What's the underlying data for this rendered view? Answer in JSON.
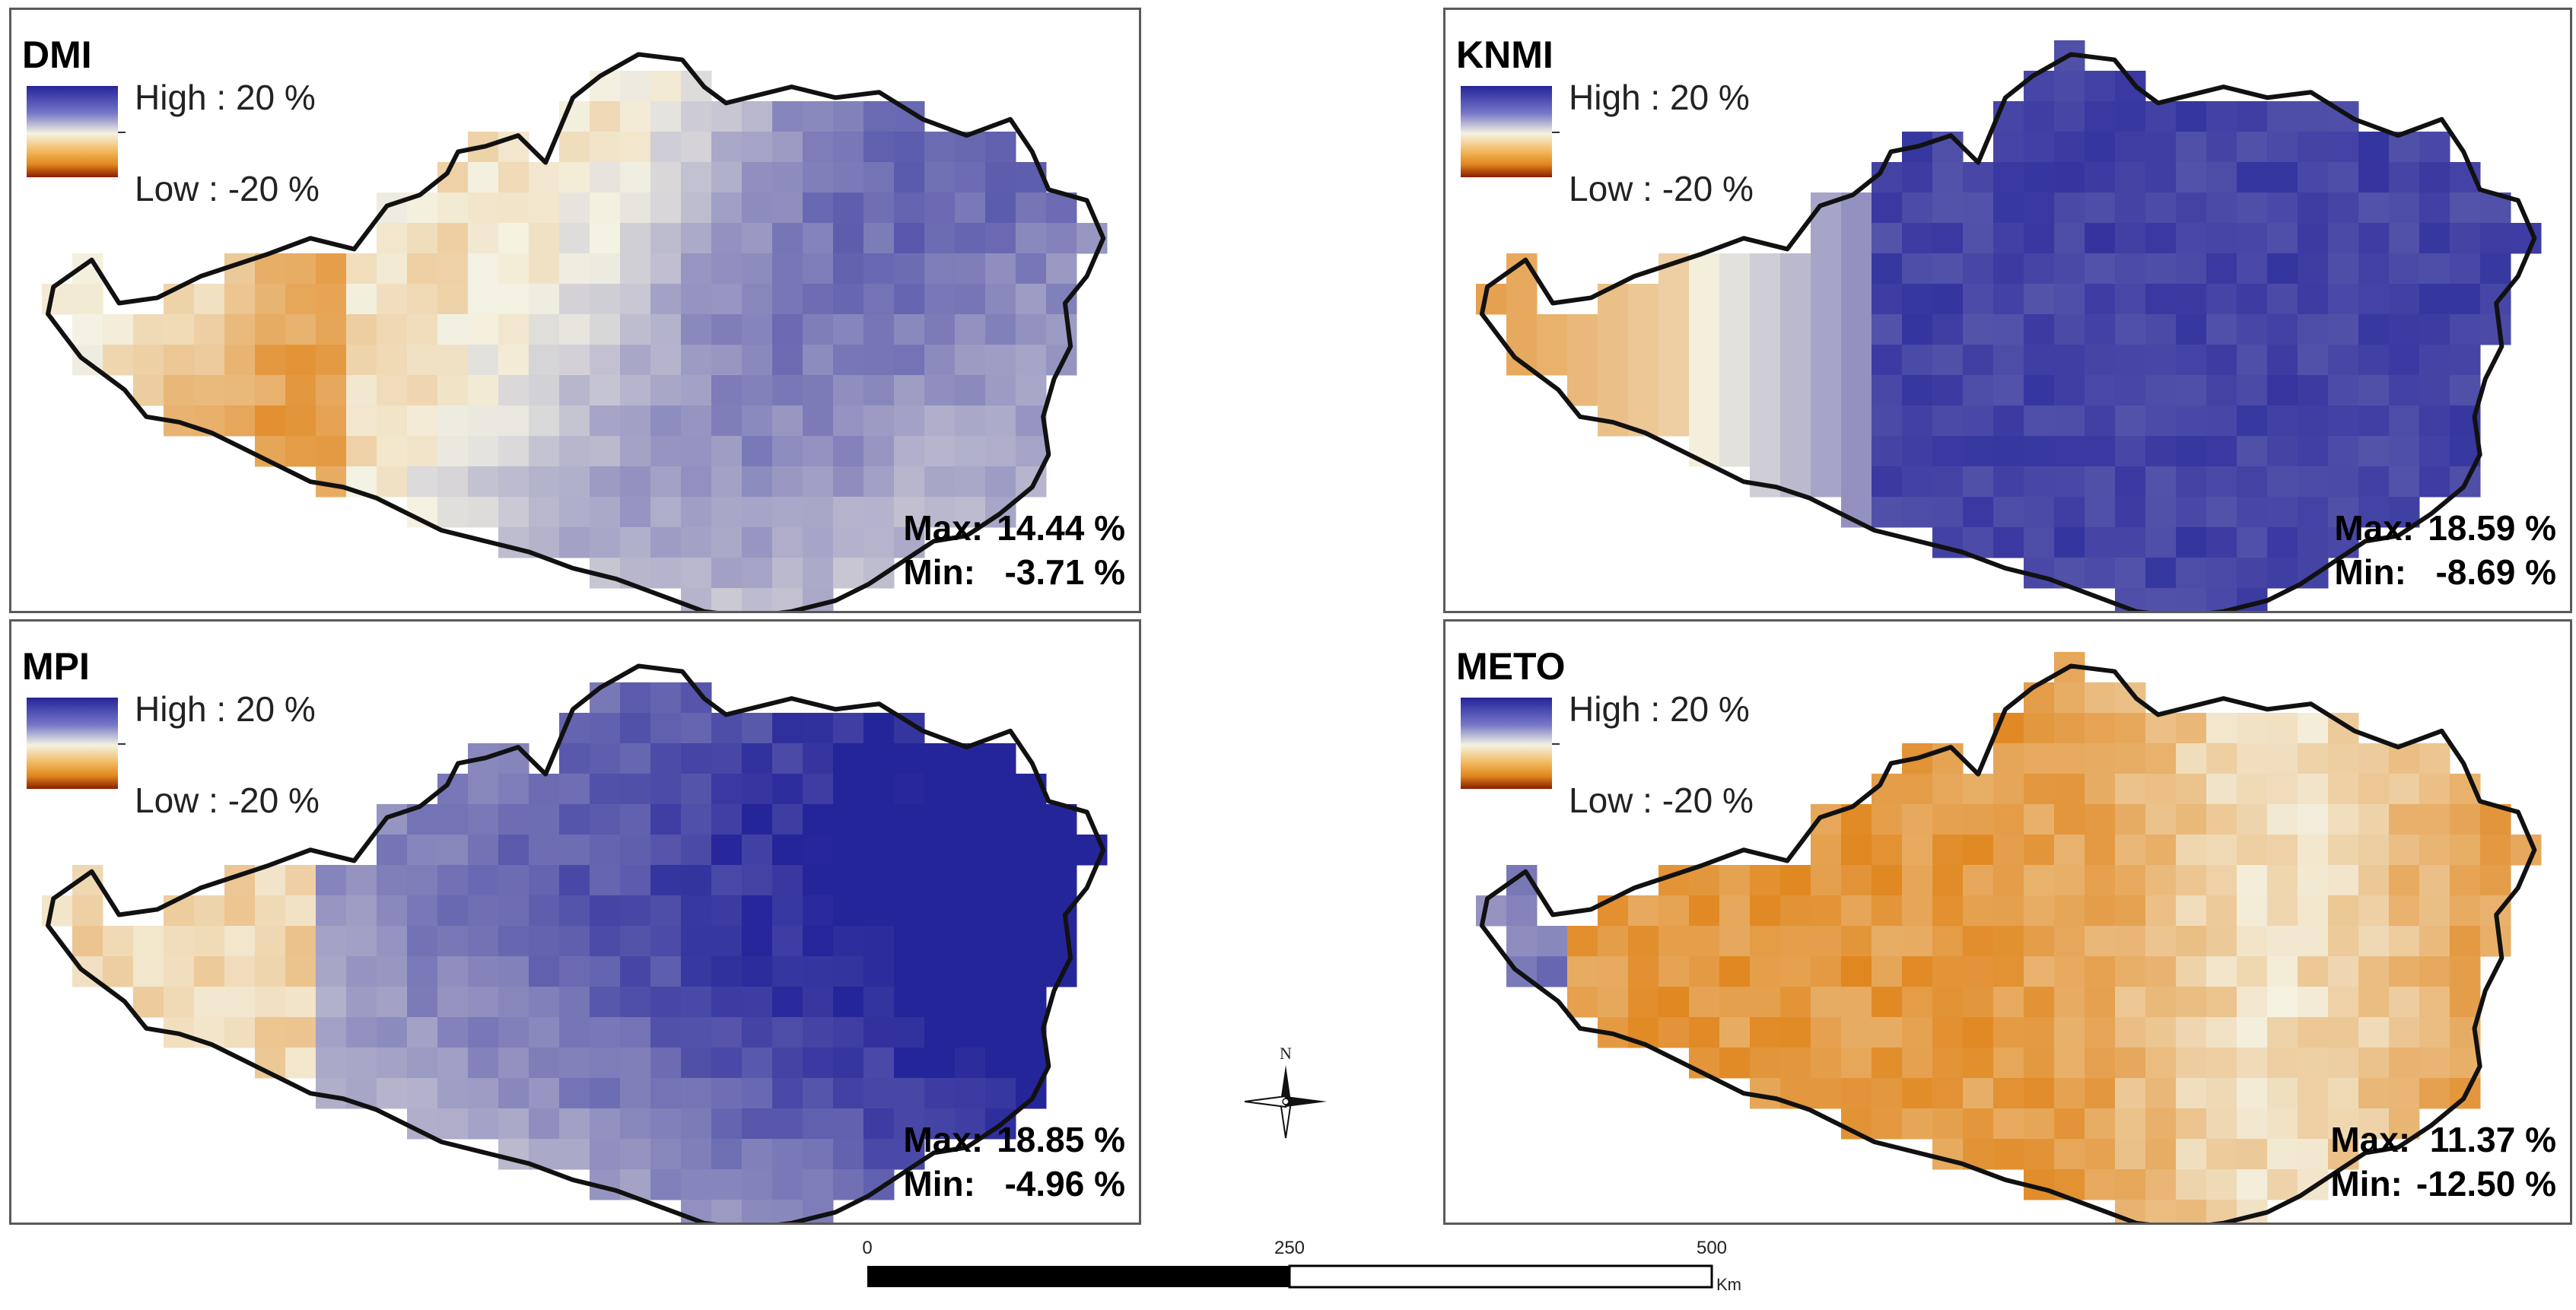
{
  "legend": {
    "high": "High : 20 %",
    "low": "Low : -20 %"
  },
  "panels": [
    {
      "title": "DMI",
      "max_label": "Max:",
      "max": "14.44 %",
      "min_label": "Min:",
      "min": "-3.71 %",
      "scheme": "dmi"
    },
    {
      "title": "KNMI",
      "max_label": "Max:",
      "max": "18.59 %",
      "min_label": "Min:",
      "min": "-8.69 %",
      "scheme": "knmi"
    },
    {
      "title": "MPI",
      "max_label": "Max:",
      "max": "18.85 %",
      "min_label": "Min:",
      "min": "-4.96 %",
      "scheme": "mpi"
    },
    {
      "title": "METO",
      "max_label": "Max:",
      "max": "11.37 %",
      "min_label": "Min:",
      "min": "-12.50 %",
      "scheme": "meto"
    }
  ],
  "north_label": "N",
  "scale": {
    "ticks": [
      "0",
      "250",
      "500"
    ],
    "unit": "Km"
  },
  "colors": {
    "high": "#25259a",
    "mid": "#f4f2e2",
    "low": "#e0861e",
    "low_end": "#8a1d00",
    "outline": "#111111"
  }
}
